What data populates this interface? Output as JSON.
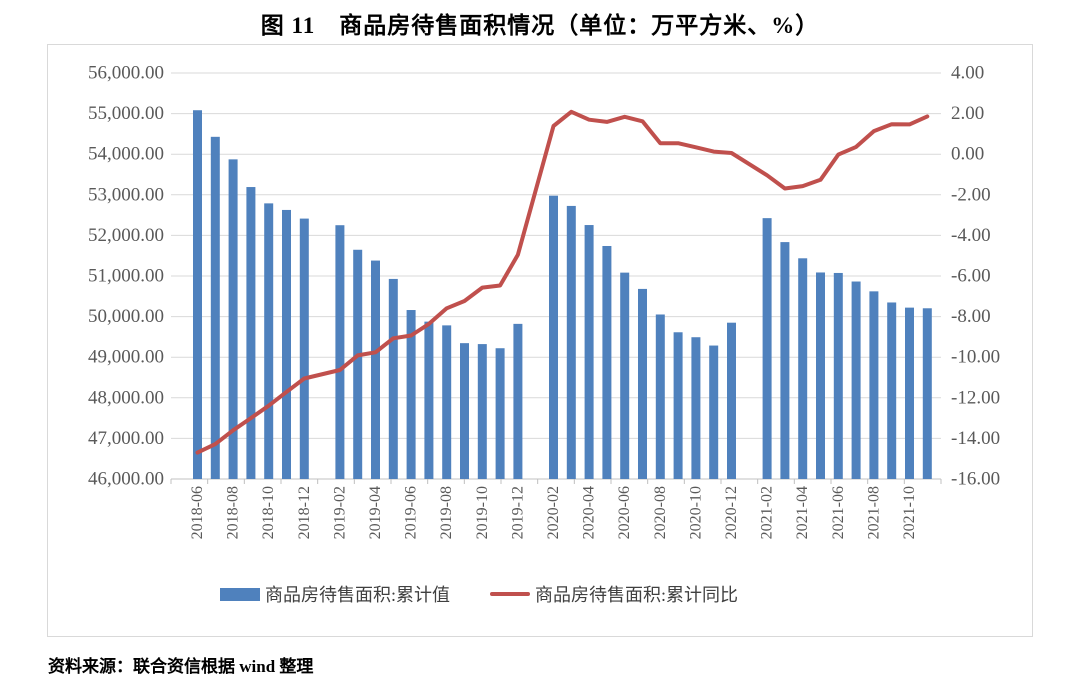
{
  "page": {
    "title": "图 11　商品房待售面积情况（单位：万平方米、%）",
    "source_note": "资料来源：联合资信根据 wind 整理"
  },
  "chart_data": {
    "type": "bar",
    "subtype": "combo-bar-line",
    "title": "图 11　商品房待售面积情况（单位：万平方米、%）",
    "unit": "万平方米、%",
    "grid": true,
    "legend_position": "bottom",
    "categories": [
      "2018-06",
      "2018-07",
      "2018-08",
      "2018-09",
      "2018-10",
      "2018-11",
      "2018-12",
      "2019-01",
      "2019-02",
      "2019-03",
      "2019-04",
      "2019-05",
      "2019-06",
      "2019-07",
      "2019-08",
      "2019-09",
      "2019-10",
      "2019-11",
      "2019-12",
      "2020-01",
      "2020-02",
      "2020-03",
      "2020-04",
      "2020-05",
      "2020-06",
      "2020-07",
      "2020-08",
      "2020-09",
      "2020-10",
      "2020-11",
      "2020-12",
      "2021-01",
      "2021-02",
      "2021-03",
      "2021-04",
      "2021-05",
      "2021-06",
      "2021-07",
      "2021-08",
      "2021-09",
      "2021-10",
      "2021-11"
    ],
    "series": [
      {
        "name": "商品房待售面积:累计值",
        "type": "bar",
        "axis": "left",
        "color": "#4F81BD",
        "values": [
          55083,
          54428,
          53873,
          53191,
          52789,
          52627,
          52414,
          null,
          52251,
          51646,
          51380,
          50928,
          50162,
          49876,
          49784,
          49346,
          49323,
          49221,
          49821,
          null,
          52978,
          52726,
          52255,
          51739,
          51083,
          50682,
          50052,
          49614,
          49492,
          49287,
          49850,
          null,
          52425,
          51835,
          51436,
          51087,
          51075,
          50864,
          50622,
          50348,
          50221,
          50205
        ]
      },
      {
        "name": "商品房待售面积:累计同比",
        "type": "line",
        "axis": "right",
        "color": "#C0504D",
        "values": [
          -14.7,
          -14.28,
          -13.6,
          -13.0,
          -12.39,
          -11.71,
          -11.05,
          null,
          -10.63,
          -9.91,
          -9.76,
          -9.07,
          -8.93,
          -8.36,
          -7.59,
          -7.23,
          -6.57,
          -6.47,
          -4.95,
          null,
          1.39,
          2.09,
          1.7,
          1.59,
          1.84,
          1.62,
          0.54,
          0.54,
          0.34,
          0.13,
          0.06,
          null,
          -1.04,
          -1.69,
          -1.57,
          -1.26,
          -0.02,
          0.36,
          1.14,
          1.48,
          1.47,
          1.86
        ]
      }
    ],
    "left_axis": {
      "min": 46000,
      "max": 56000,
      "step": 1000,
      "tick_labels": [
        "56,000.00",
        "55,000.00",
        "54,000.00",
        "53,000.00",
        "52,000.00",
        "51,000.00",
        "50,000.00",
        "49,000.00",
        "48,000.00",
        "47,000.00",
        "46,000.00"
      ]
    },
    "right_axis": {
      "min": -16,
      "max": 4,
      "step": 2,
      "tick_labels": [
        "4.00",
        "2.00",
        "0.00",
        "-2.00",
        "-4.00",
        "-6.00",
        "-8.00",
        "-10.00",
        "-12.00",
        "-14.00",
        "-16.00"
      ]
    },
    "x_axis": {
      "label_interval": 2,
      "tick_labels": [
        "2018-06",
        "2018-08",
        "2018-10",
        "2018-12",
        "2019-02",
        "2019-04",
        "2019-06",
        "2019-08",
        "2019-10",
        "2019-12",
        "2020-02",
        "2020-04",
        "2020-06",
        "2020-08",
        "2020-10",
        "2020-12",
        "2021-02",
        "2021-04",
        "2021-06",
        "2021-08",
        "2021-10"
      ]
    },
    "gap_categories": [
      "2019-01",
      "2020-01",
      "2021-01"
    ],
    "colors": {
      "gridline": "#D9D9D9",
      "axis_line": "#C0C0C0",
      "axis_text": "#595959",
      "legend_text": "#404040",
      "frame_border": "#D9D9D9"
    }
  }
}
